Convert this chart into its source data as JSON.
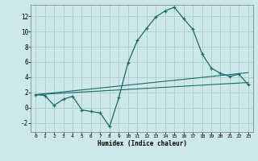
{
  "xlabel": "Humidex (Indice chaleur)",
  "background_color": "#cce8e8",
  "grid_color": "#aacccc",
  "line_color": "#1a6b6b",
  "xlim": [
    -0.5,
    23.5
  ],
  "ylim": [
    -3.2,
    13.5
  ],
  "yticks": [
    -2,
    0,
    2,
    4,
    6,
    8,
    10,
    12
  ],
  "xticks": [
    0,
    1,
    2,
    3,
    4,
    5,
    6,
    7,
    8,
    9,
    10,
    11,
    12,
    13,
    14,
    15,
    16,
    17,
    18,
    19,
    20,
    21,
    22,
    23
  ],
  "line1_x": [
    0,
    1,
    2,
    3,
    4,
    5,
    6,
    7,
    8,
    9,
    10,
    11,
    12,
    13,
    14,
    15,
    16,
    17,
    18,
    19,
    20,
    21,
    22,
    23
  ],
  "line1_y": [
    1.7,
    1.6,
    0.3,
    1.1,
    1.5,
    -0.3,
    -0.5,
    -0.7,
    -2.5,
    1.3,
    5.9,
    8.8,
    10.4,
    11.9,
    12.7,
    13.2,
    11.7,
    10.3,
    7.1,
    5.2,
    4.5,
    4.1,
    4.4,
    3.0
  ],
  "line2_x": [
    0,
    23
  ],
  "line2_y": [
    1.7,
    3.3
  ],
  "line3_x": [
    0,
    23
  ],
  "line3_y": [
    1.7,
    4.6
  ]
}
